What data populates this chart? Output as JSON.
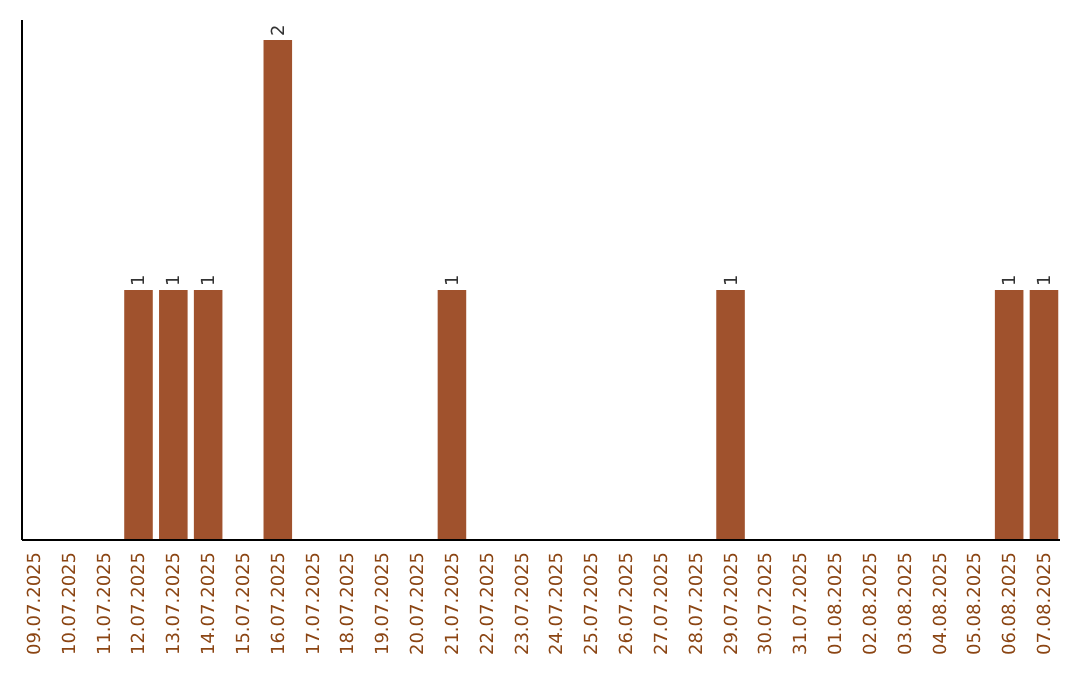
{
  "chart_data": {
    "type": "bar",
    "categories": [
      "09.07.2025",
      "10.07.2025",
      "11.07.2025",
      "12.07.2025",
      "13.07.2025",
      "14.07.2025",
      "15.07.2025",
      "16.07.2025",
      "17.07.2025",
      "18.07.2025",
      "19.07.2025",
      "20.07.2025",
      "21.07.2025",
      "22.07.2025",
      "23.07.2025",
      "24.07.2025",
      "25.07.2025",
      "26.07.2025",
      "27.07.2025",
      "28.07.2025",
      "29.07.2025",
      "30.07.2025",
      "31.07.2025",
      "01.08.2025",
      "02.08.2025",
      "03.08.2025",
      "04.08.2025",
      "05.08.2025",
      "06.08.2025",
      "07.08.2025"
    ],
    "values": [
      0,
      0,
      0,
      1,
      1,
      1,
      0,
      2,
      0,
      0,
      0,
      0,
      1,
      0,
      0,
      0,
      0,
      0,
      0,
      0,
      1,
      0,
      0,
      0,
      0,
      0,
      0,
      0,
      1,
      1
    ],
    "color": "#a0522d",
    "value_labels": [
      null,
      null,
      null,
      "1",
      "1",
      "1",
      null,
      "2",
      null,
      null,
      null,
      null,
      "1",
      null,
      null,
      null,
      null,
      null,
      null,
      null,
      "1",
      null,
      null,
      null,
      null,
      null,
      null,
      null,
      "1",
      "1"
    ]
  }
}
